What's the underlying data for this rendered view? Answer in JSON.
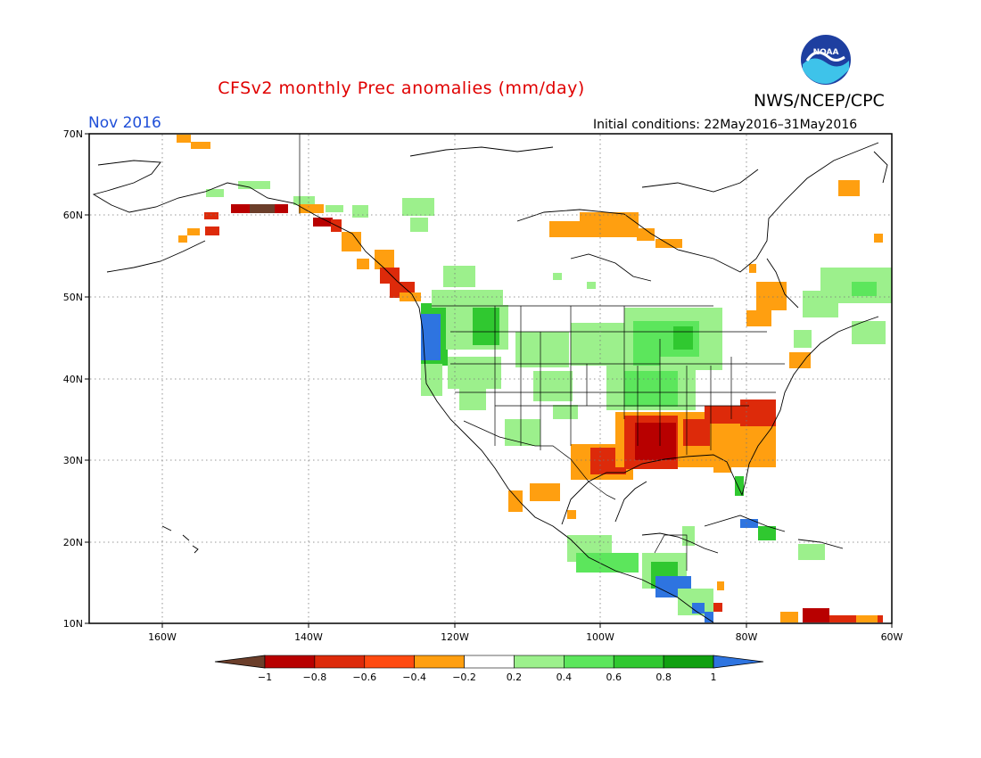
{
  "title": "CFSv2 monthly Prec anomalies (mm/day)",
  "agency": "NWS/NCEP/CPC",
  "logo_text": "NOAA",
  "month_label": "Nov 2016",
  "initial_conditions": "Initial conditions: 22May2016–31May2016",
  "lat_labels": [
    "70N",
    "60N",
    "50N",
    "40N",
    "30N",
    "20N",
    "10N"
  ],
  "lon_labels": [
    "160W",
    "140W",
    "120W",
    "100W",
    "80W",
    "60W"
  ],
  "colorbar": {
    "labels": [
      "−1",
      "−0.8",
      "−0.6",
      "−0.4",
      "−0.2",
      "0.2",
      "0.4",
      "0.6",
      "0.8",
      "1"
    ],
    "colors": [
      "#6b3e2a",
      "#b80000",
      "#dd2a0a",
      "#ff4a10",
      "#ff9f10",
      "#ffffff",
      "#9cf08c",
      "#5ce65c",
      "#30c830",
      "#10a010",
      "#2e74e0"
    ]
  }
}
